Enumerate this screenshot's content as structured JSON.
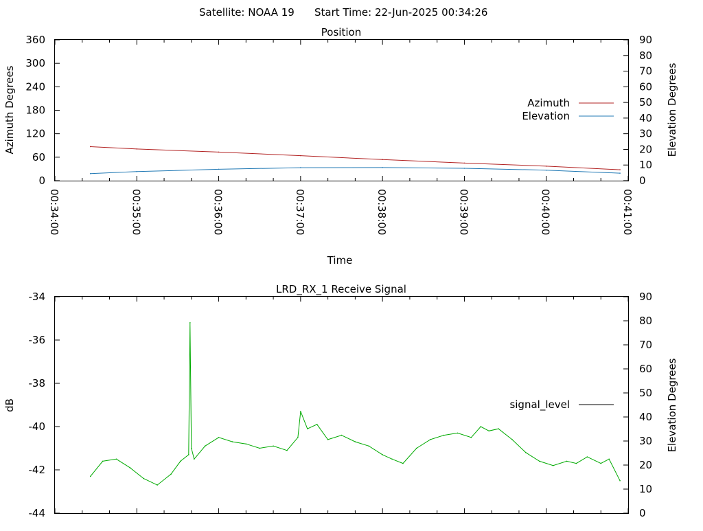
{
  "header": {
    "satellite_text": "Satellite: NOAA 19",
    "start_time_text": "Start Time: 22-Jun-2025 00:34:26"
  },
  "chart_data": [
    {
      "type": "line",
      "title": "Position",
      "xlabel": "Time",
      "ylabel": "Azimuth Degrees",
      "y2label": "Elevation Degrees",
      "x_range_seconds": [
        0,
        420
      ],
      "x_tick_labels": [
        "00:34:00",
        "00:35:00",
        "00:36:00",
        "00:37:00",
        "00:38:00",
        "00:39:00",
        "00:40:00",
        "00:41:00"
      ],
      "ylim": [
        0,
        360
      ],
      "y_ticks": [
        0,
        60,
        120,
        180,
        240,
        300,
        360
      ],
      "y2lim": [
        0,
        90
      ],
      "y2_ticks": [
        0,
        10,
        20,
        30,
        40,
        50,
        60,
        70,
        80,
        90
      ],
      "legend_position": "right",
      "series": [
        {
          "name": "Azimuth",
          "axis": "y",
          "color": "#b22222",
          "x": [
            "00:34:26",
            "00:35:00",
            "00:36:00",
            "00:37:00",
            "00:38:00",
            "00:39:00",
            "00:40:00",
            "00:40:54"
          ],
          "values": [
            87,
            81,
            73,
            64,
            54,
            45,
            37,
            28
          ]
        },
        {
          "name": "Elevation",
          "axis": "y2",
          "color": "#1f78b4",
          "x": [
            "00:34:26",
            "00:35:00",
            "00:36:00",
            "00:37:00",
            "00:38:00",
            "00:39:00",
            "00:40:00",
            "00:40:54"
          ],
          "values": [
            4.5,
            5.8,
            7.3,
            8.3,
            8.4,
            7.9,
            6.7,
            4.8
          ]
        }
      ]
    },
    {
      "type": "line",
      "title": "LRD_RX_1 Receive Signal",
      "ylabel": "dB",
      "y2label": "Elevation Degrees",
      "x_range_seconds": [
        0,
        420
      ],
      "ylim": [
        -44,
        -34
      ],
      "y_ticks": [
        -44,
        -42,
        -40,
        -38,
        -36,
        -34
      ],
      "y2lim": [
        0,
        90
      ],
      "y2_ticks": [
        0,
        10,
        20,
        30,
        40,
        50,
        60,
        70,
        80,
        90
      ],
      "legend_position": "right",
      "series": [
        {
          "name": "signal_level",
          "color": "#00aa00",
          "x": [
            "00:34:26",
            "00:34:35",
            "00:34:45",
            "00:34:55",
            "00:35:05",
            "00:35:15",
            "00:35:25",
            "00:35:32",
            "00:35:38",
            "00:35:39",
            "00:35:40",
            "00:35:42",
            "00:35:50",
            "00:36:00",
            "00:36:10",
            "00:36:20",
            "00:36:30",
            "00:36:40",
            "00:36:50",
            "00:36:58",
            "00:37:00",
            "00:37:05",
            "00:37:12",
            "00:37:20",
            "00:37:30",
            "00:37:40",
            "00:37:50",
            "00:38:00",
            "00:38:07",
            "00:38:15",
            "00:38:25",
            "00:38:35",
            "00:38:45",
            "00:38:55",
            "00:39:05",
            "00:39:12",
            "00:39:18",
            "00:39:25",
            "00:39:35",
            "00:39:45",
            "00:39:55",
            "00:40:05",
            "00:40:15",
            "00:40:22",
            "00:40:30",
            "00:40:40",
            "00:40:46",
            "00:40:54"
          ],
          "values": [
            -42.3,
            -41.6,
            -41.5,
            -41.9,
            -42.4,
            -42.7,
            -42.2,
            -41.6,
            -41.3,
            -35.2,
            -41.0,
            -41.5,
            -40.9,
            -40.5,
            -40.7,
            -40.8,
            -41.0,
            -40.9,
            -41.1,
            -40.5,
            -39.3,
            -40.1,
            -39.9,
            -40.6,
            -40.4,
            -40.7,
            -40.9,
            -41.3,
            -41.5,
            -41.7,
            -41.0,
            -40.6,
            -40.4,
            -40.3,
            -40.5,
            -40.0,
            -40.2,
            -40.1,
            -40.6,
            -41.2,
            -41.6,
            -41.8,
            -41.6,
            -41.7,
            -41.4,
            -41.7,
            -41.5,
            -42.5
          ]
        }
      ]
    }
  ]
}
